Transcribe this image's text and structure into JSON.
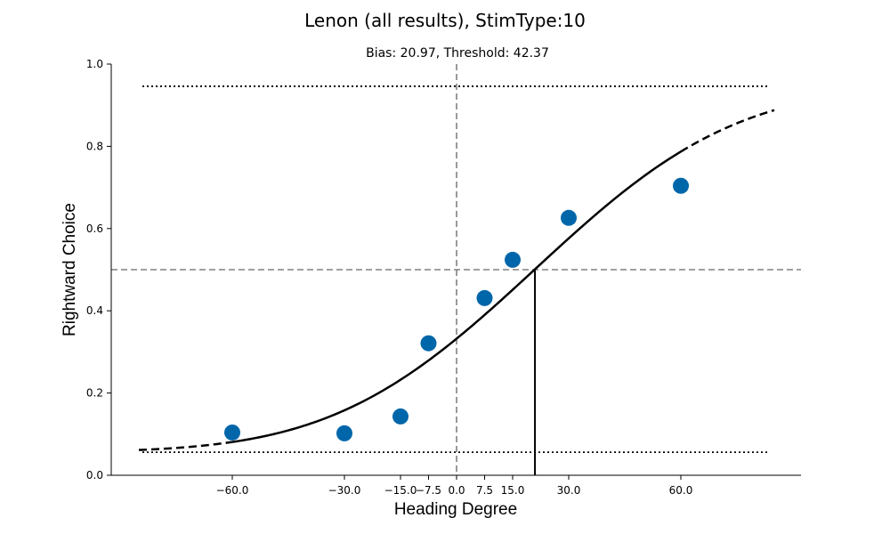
{
  "chart_data": {
    "type": "scatter",
    "title": "Lenon (all results), StimType:10",
    "subtitle": "Bias: 20.97, Threshold: 42.37",
    "xlabel": "Heading Degree",
    "ylabel": "Rightward Choice",
    "xlim": [
      -88,
      88
    ],
    "ylim": [
      0.0,
      1.0
    ],
    "xticks": [
      -60.0,
      -30.0,
      -15.0,
      -7.5,
      0.0,
      7.5,
      15.0,
      30.0,
      60.0
    ],
    "xtick_labels": [
      "−60.0",
      "−30.0",
      "−15.0",
      "−7.5",
      "0.0",
      "7.5",
      "15.0",
      "30.0",
      "60.0"
    ],
    "yticks": [
      0.0,
      0.2,
      0.4,
      0.6,
      0.8,
      1.0
    ],
    "ytick_labels": [
      "0.0",
      "0.2",
      "0.4",
      "0.6",
      "0.8",
      "1.0"
    ],
    "series": [
      {
        "kind": "points",
        "color": "#0066aa",
        "x": [
          -60.0,
          -30.0,
          -15.0,
          -7.5,
          7.5,
          15.0,
          30.0,
          60.0
        ],
        "y": [
          0.104,
          0.102,
          0.143,
          0.321,
          0.431,
          0.524,
          0.626,
          0.704
        ]
      },
      {
        "kind": "fit-curve",
        "color": "#000000",
        "solid_range": [
          -60.0,
          60.0
        ],
        "dashed_range": [
          -85.0,
          85.0
        ],
        "guess_rate": 0.056,
        "lapse_rate": 0.054,
        "bias": 20.97,
        "threshold": 42.37
      }
    ],
    "reference_lines": {
      "upper_bound": 0.946,
      "lower_bound": 0.056,
      "vertical_center_x": 0.0,
      "horizontal_center_y": 0.5,
      "bias_marker_x": 20.97
    },
    "grid": false
  }
}
